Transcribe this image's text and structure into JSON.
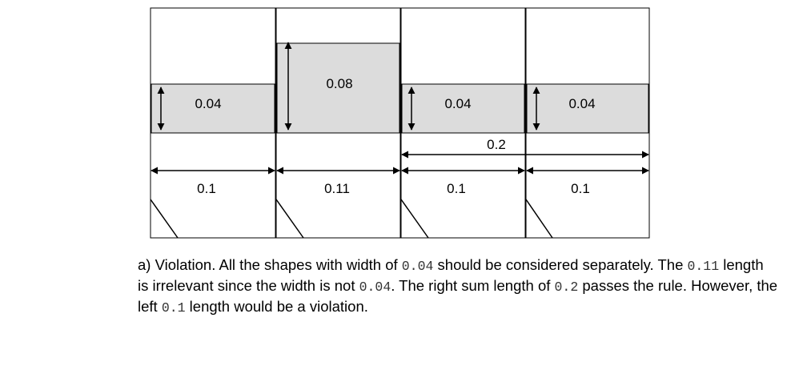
{
  "diagram": {
    "width_labels": [
      "0.04",
      "0.08",
      "0.04",
      "0.04"
    ],
    "length_labels": [
      "0.1",
      "0.11",
      "0.1",
      "0.1"
    ],
    "sum_label": "0.2"
  },
  "caption": {
    "seg1": "a) Violation. All the shapes with width of ",
    "code1": "0.04",
    "seg2": " should be considered separately. The ",
    "code2": "0.11",
    "seg3": " length is irrelevant since the width is not ",
    "code3": "0.04",
    "seg4": ". The right sum length of ",
    "code4": "0.2",
    "seg5": " passes the rule. However, the left ",
    "code5": "0.1",
    "seg6": " length would be a violation."
  },
  "colors": {
    "shape_fill": "#dcdcdc",
    "stroke": "#000000"
  }
}
